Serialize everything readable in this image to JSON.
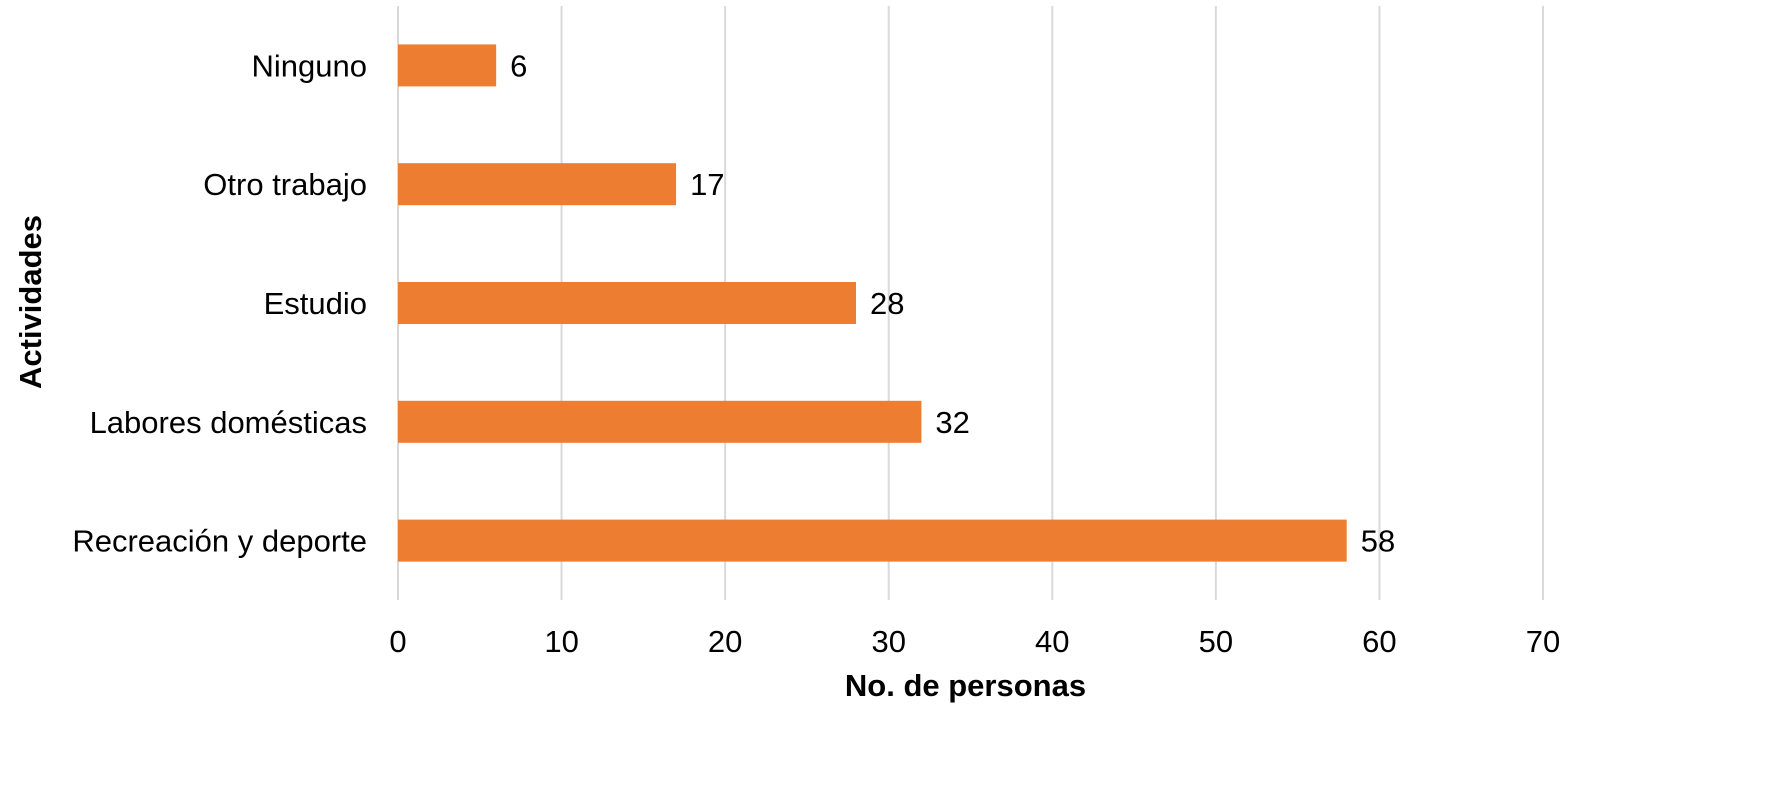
{
  "chart_data": {
    "type": "bar",
    "orientation": "horizontal",
    "categories": [
      "Ninguno",
      "Otro trabajo",
      "Estudio",
      "Labores domésticas",
      "Recreación y deporte"
    ],
    "values": [
      6,
      17,
      28,
      32,
      58
    ],
    "xlabel": "No. de personas",
    "ylabel": "Actividades",
    "xlim": [
      0,
      70
    ],
    "x_ticks": [
      0,
      10,
      20,
      30,
      40,
      50,
      60,
      70
    ],
    "grid": "vertical",
    "bar_color": "#ED7D31",
    "grid_color": "#D9D9D9",
    "data_labels": true
  }
}
